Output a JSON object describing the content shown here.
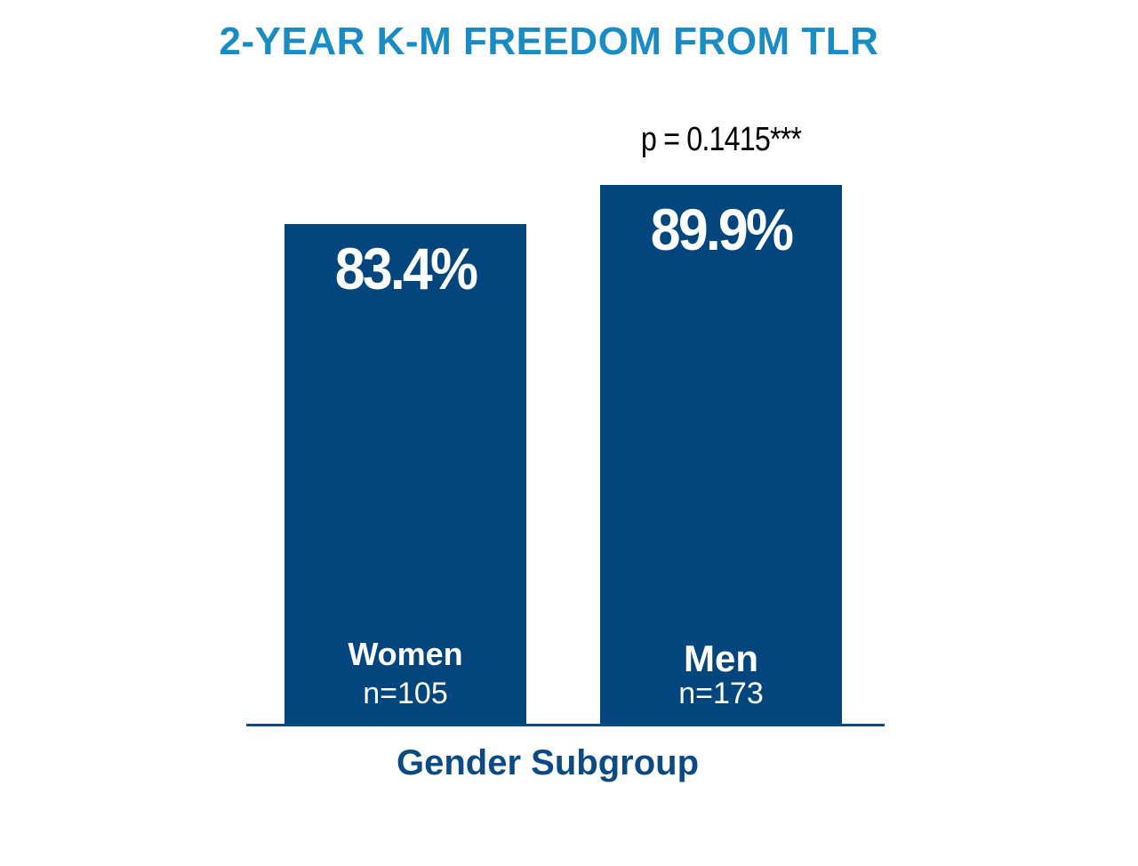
{
  "chart_data": {
    "type": "bar",
    "title": "2-YEAR K-M FREEDOM FROM TLR",
    "xlabel": "Gender Subgroup",
    "ylabel": "",
    "categories": [
      "Women",
      "Men"
    ],
    "n_labels": [
      "n=105",
      "n=173"
    ],
    "values": [
      83.4,
      89.9
    ],
    "value_labels": [
      "83.4%",
      "89.9%"
    ],
    "annotation": "p = 0.1415***",
    "grid": false,
    "colors": {
      "bar": "#03467e",
      "title": "#1a8cc3",
      "axis_label": "#0b4a82",
      "baseline": "#0b4a82"
    }
  }
}
